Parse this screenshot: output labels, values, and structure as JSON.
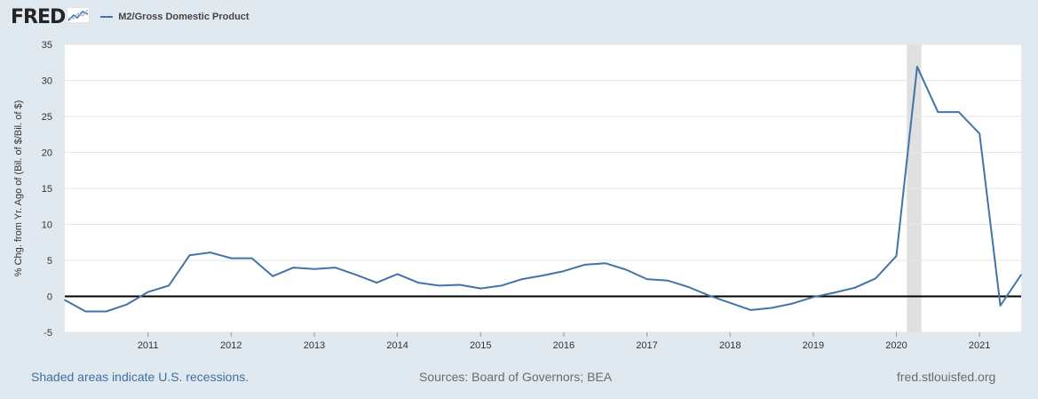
{
  "header": {
    "logo_text": "FRED",
    "logo_icon": "chart-line-icon",
    "legend_label": "M2/Gross Domestic Product"
  },
  "footer": {
    "recession_note": "Shaded areas indicate U.S. recessions.",
    "sources": "Sources: Board of Governors; BEA",
    "site": "fred.stlouisfed.org"
  },
  "colors": {
    "background": "#e1e9f0",
    "plot_bg": "#ffffff",
    "series": "#4572a7",
    "recession": "#e0e0e0",
    "zero_line": "#000000",
    "grid": "#e6e6e6"
  },
  "chart_data": {
    "type": "line",
    "ylabel": "% Chg. from Yr. Ago of (Bil. of $/Bil. of $)",
    "xlabel": "",
    "ylim": [
      -5,
      35
    ],
    "yticks": [
      -5,
      0,
      5,
      10,
      15,
      20,
      25,
      30,
      35
    ],
    "xlim": [
      2010.0,
      2021.5
    ],
    "xticks": [
      "2011",
      "2012",
      "2013",
      "2014",
      "2015",
      "2016",
      "2017",
      "2018",
      "2019",
      "2020",
      "2021"
    ],
    "grid": "horizontal",
    "zero_line": true,
    "recessions": [
      {
        "start": 2020.125,
        "end": 2020.3
      }
    ],
    "series": [
      {
        "name": "M2/Gross Domestic Product",
        "x": [
          "2010-01",
          "2010-04",
          "2010-07",
          "2010-10",
          "2011-01",
          "2011-04",
          "2011-07",
          "2011-10",
          "2012-01",
          "2012-04",
          "2012-07",
          "2012-10",
          "2013-01",
          "2013-04",
          "2013-07",
          "2013-10",
          "2014-01",
          "2014-04",
          "2014-07",
          "2014-10",
          "2015-01",
          "2015-04",
          "2015-07",
          "2015-10",
          "2016-01",
          "2016-04",
          "2016-07",
          "2016-10",
          "2017-01",
          "2017-04",
          "2017-07",
          "2017-10",
          "2018-01",
          "2018-04",
          "2018-07",
          "2018-10",
          "2019-01",
          "2019-04",
          "2019-07",
          "2019-10",
          "2020-01",
          "2020-04",
          "2020-07",
          "2020-10",
          "2021-01",
          "2021-04",
          "2021-07"
        ],
        "values": [
          -0.5,
          -2.1,
          -2.1,
          -1.1,
          0.6,
          1.5,
          5.7,
          6.1,
          5.3,
          5.3,
          2.8,
          4.0,
          3.8,
          4.0,
          3.0,
          1.9,
          3.1,
          1.9,
          1.5,
          1.6,
          1.1,
          1.5,
          2.4,
          2.9,
          3.5,
          4.4,
          4.6,
          3.7,
          2.4,
          2.2,
          1.3,
          0.1,
          -0.9,
          -1.9,
          -1.6,
          -1.0,
          -0.1,
          0.5,
          1.2,
          2.5,
          5.6,
          31.9,
          25.6,
          25.6,
          22.6,
          -1.3,
          3.0
        ]
      }
    ]
  }
}
